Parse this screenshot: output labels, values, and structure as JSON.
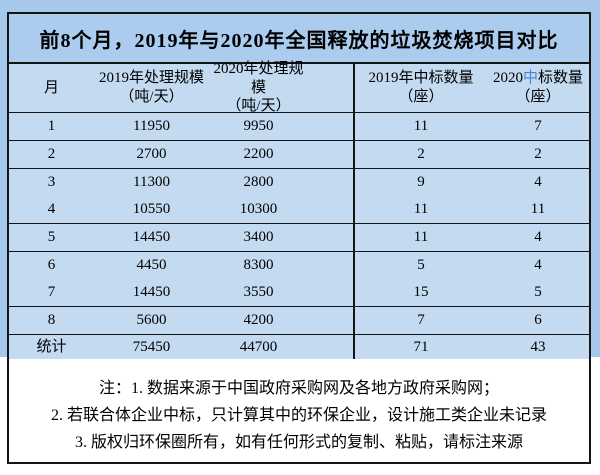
{
  "title": "前8个月，2019年与2020年全国释放的垃圾焚烧项目对比",
  "colors": {
    "page_blue": "#a6c8ea",
    "title_blue": "#abccee",
    "cell_blue": "#c3daf1",
    "line_dark": "#141414",
    "accent_char_blue": "#4a86d8",
    "notes_bg": "#ffffff"
  },
  "table": {
    "headers": [
      {
        "line1": "月",
        "line2": ""
      },
      {
        "line1": "2019年处理规模",
        "line2": "（吨/天）"
      },
      {
        "line1": "2020年处理规模",
        "line2": "（吨/天）"
      },
      {
        "line1": "2019年中标数量",
        "line2": "（座）"
      },
      {
        "line1_parts": {
          "prefix": "2020",
          "accent": "中",
          "suffix": "标数量"
        },
        "line2": "（座）"
      }
    ],
    "rows": [
      [
        "1",
        "11950",
        "9950",
        "11",
        "7"
      ],
      [
        "2",
        "2700",
        "2200",
        "2",
        "2"
      ],
      [
        "3",
        "11300",
        "2800",
        "9",
        "4"
      ],
      [
        "4",
        "10550",
        "10300",
        "11",
        "11"
      ],
      [
        "5",
        "14450",
        "3400",
        "11",
        "4"
      ],
      [
        "6",
        "4450",
        "8300",
        "5",
        "4"
      ],
      [
        "7",
        "14450",
        "3550",
        "15",
        "5"
      ],
      [
        "8",
        "5600",
        "4200",
        "7",
        "6"
      ]
    ],
    "total_row": [
      "统计",
      "75450",
      "44700",
      "71",
      "43"
    ],
    "no_divider_after_rows": [
      3,
      6
    ]
  },
  "notes": [
    "注：1. 数据来源于中国政府采购网及各地方政府采购网；",
    "2. 若联合体企业中标，只计算其中的环保企业，设计施工类企业未记录",
    "3. 版权归环保圈所有，如有任何形式的复制、粘贴，请标注来源"
  ],
  "chart_data": {
    "type": "table",
    "title": "前8个月，2019年与2020年全国释放的垃圾焚烧项目对比",
    "columns": [
      "月",
      "2019年处理规模（吨/天）",
      "2020年处理规模（吨/天）",
      "2019年中标数量（座）",
      "2020中标数量（座）"
    ],
    "rows": [
      [
        1,
        11950,
        9950,
        11,
        7
      ],
      [
        2,
        2700,
        2200,
        2,
        2
      ],
      [
        3,
        11300,
        2800,
        9,
        4
      ],
      [
        4,
        10550,
        10300,
        11,
        11
      ],
      [
        5,
        14450,
        3400,
        11,
        4
      ],
      [
        6,
        4450,
        8300,
        5,
        4
      ],
      [
        7,
        14450,
        3550,
        15,
        5
      ],
      [
        8,
        5600,
        4200,
        7,
        6
      ]
    ],
    "total": [
      "统计",
      75450,
      44700,
      71,
      43
    ]
  }
}
